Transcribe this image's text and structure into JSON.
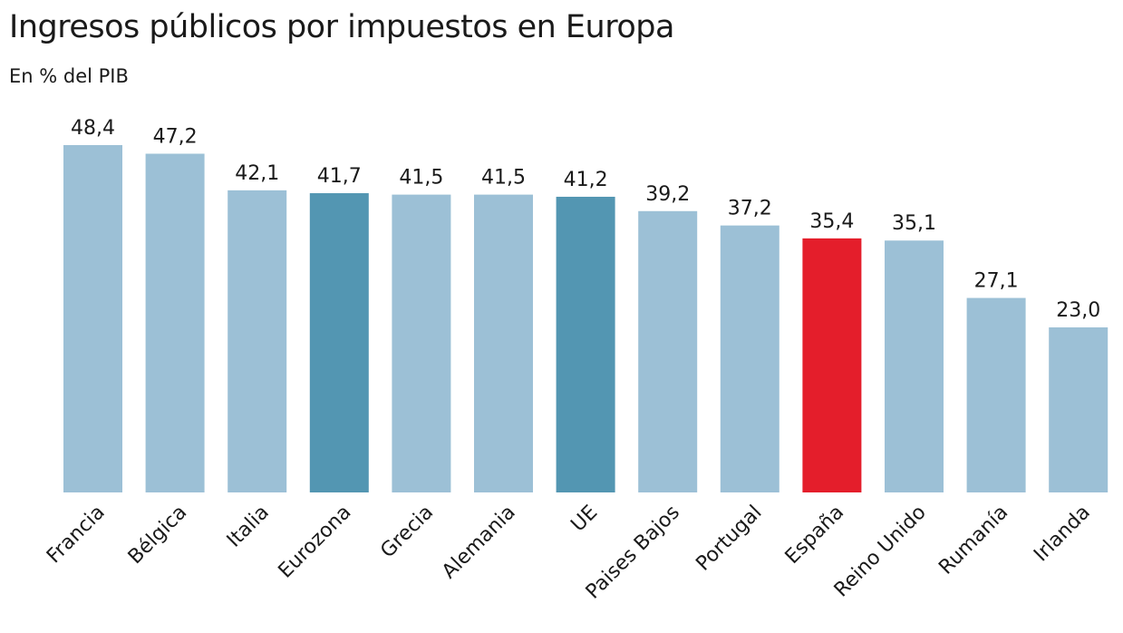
{
  "chart_data": {
    "type": "bar",
    "title": "Ingresos públicos por impuestos en Europa",
    "subtitle": "En % del PIB",
    "categories": [
      "Francia",
      "Bélgica",
      "Italia",
      "Eurozona",
      "Grecia",
      "Alemania",
      "UE",
      "Paises Bajos",
      "Portugal",
      "España",
      "Reino Unido",
      "Rumanía",
      "Irlanda"
    ],
    "values": [
      48.4,
      47.2,
      42.1,
      41.7,
      41.5,
      41.5,
      41.2,
      39.2,
      37.2,
      35.4,
      35.1,
      27.1,
      23.0
    ],
    "value_labels": [
      "48,4",
      "47,2",
      "42,1",
      "41,7",
      "41,5",
      "41,5",
      "41,2",
      "39,2",
      "37,2",
      "35,4",
      "35,1",
      "27,1",
      "23,0"
    ],
    "bar_colors": [
      "#9cc0d6",
      "#9cc0d6",
      "#9cc0d6",
      "#5396b2",
      "#9cc0d6",
      "#9cc0d6",
      "#5396b2",
      "#9cc0d6",
      "#9cc0d6",
      "#e41e2b",
      "#9cc0d6",
      "#9cc0d6",
      "#9cc0d6"
    ],
    "ylim": [
      0,
      48.4
    ],
    "grid": false,
    "xlabel": "",
    "ylabel": ""
  }
}
